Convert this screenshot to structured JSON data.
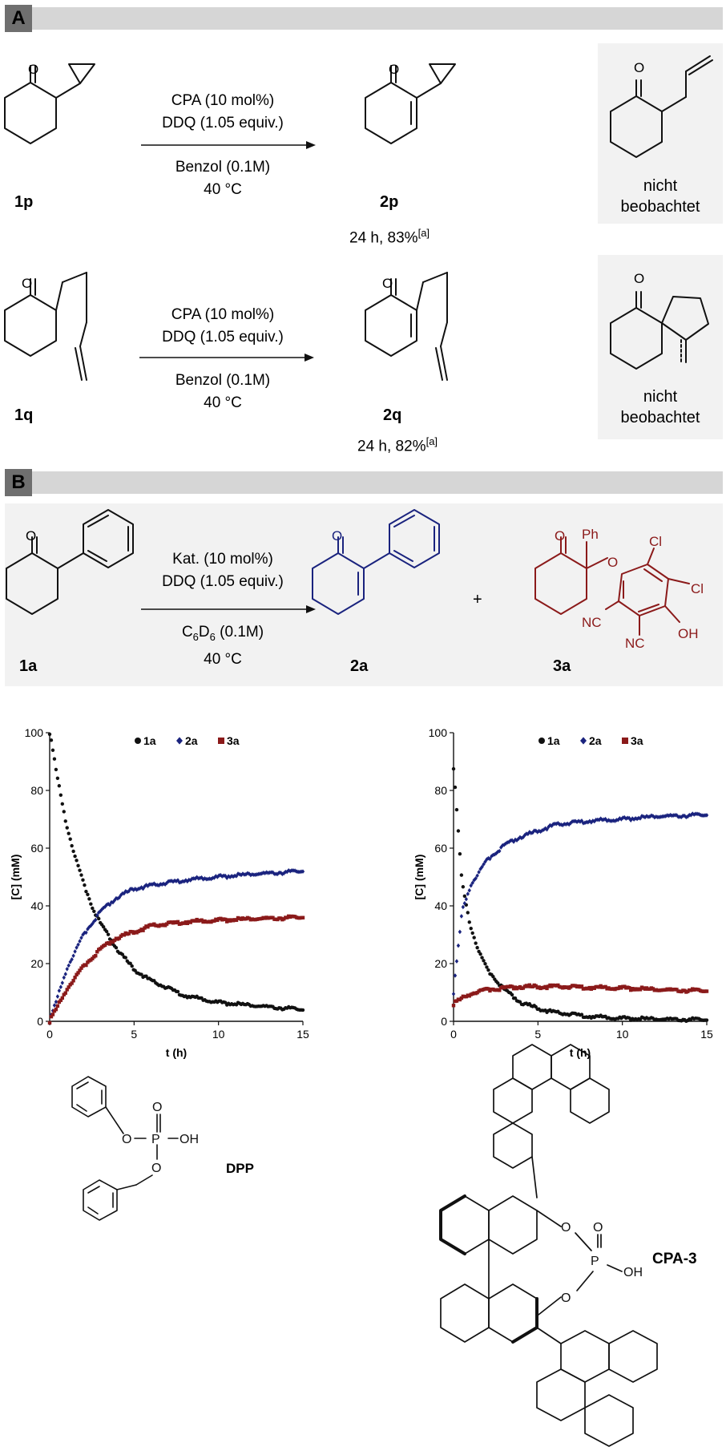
{
  "section_a": {
    "tag": "A"
  },
  "section_b": {
    "tag": "B"
  },
  "reaction_1p": {
    "reactant_label": "1p",
    "product_label": "2p",
    "cond_line1": "CPA (10 mol%)",
    "cond_line2": "DDQ (1.05 equiv.)",
    "cond_line3": "Benzol (0.1M)",
    "cond_line4": "40 °C",
    "yield": "24 h, 83%",
    "yield_note": "[a]",
    "side_note_1": "nicht",
    "side_note_2": "beobachtet"
  },
  "reaction_1q": {
    "reactant_label": "1q",
    "product_label": "2q",
    "cond_line1": "CPA (10 mol%)",
    "cond_line2": "DDQ (1.05 equiv.)",
    "cond_line3": "Benzol (0.1M)",
    "cond_line4": "40 °C",
    "yield": "24 h, 82%",
    "yield_note": "[a]",
    "side_note_1": "nicht",
    "side_note_2": "beobachtet"
  },
  "reaction_1a": {
    "reactant_label": "1a",
    "product_label": "2a",
    "byproduct_label": "3a",
    "plus": "+",
    "cond_line1": "Kat. (10 mol%)",
    "cond_line2": "DDQ (1.05 equiv.)",
    "cond_line3_pre": "C",
    "cond_line3_sub1": "6",
    "cond_line3_mid": "D",
    "cond_line3_sub2": "6",
    "cond_line3_post": " (0.1M)",
    "cond_line4": "40 °C"
  },
  "atoms": {
    "O": "O",
    "Ph": "Ph",
    "Cl": "Cl",
    "NC": "NC",
    "OH": "OH",
    "P": "P"
  },
  "catalysts": {
    "dpp_label": "DPP",
    "cpa_label": "CPA-3"
  },
  "colors": {
    "black": "#111111",
    "blue": "#1a237e",
    "red": "#8b1a1a",
    "highlight": "#cfe3f5"
  },
  "chart_data": [
    {
      "type": "scatter",
      "xlabel": "t (h)",
      "ylabel": "[C] (mM)",
      "xlim": [
        0,
        15
      ],
      "ylim": [
        0,
        100
      ],
      "xticks": [
        0,
        5,
        10,
        15
      ],
      "yticks": [
        0,
        20,
        40,
        60,
        80,
        100
      ],
      "legend_position": "top",
      "series": [
        {
          "name": "1a",
          "color": "#111111",
          "marker": "circle",
          "model": {
            "a": 0.0,
            "A": 100,
            "k": 0.38,
            "Y": 0
          },
          "x": [
            0,
            0.5,
            1,
            1.5,
            2,
            2.5,
            3,
            4,
            5,
            6,
            8,
            10,
            12,
            15
          ],
          "values": [
            100,
            83,
            68,
            57,
            48,
            40,
            34,
            25,
            18,
            14,
            9,
            6.5,
            5.5,
            4
          ]
        },
        {
          "name": "2a",
          "color": "#1a237e",
          "marker": "diamond",
          "model": {
            "a": 52,
            "A": 0,
            "k": 0.45,
            "Y": 1
          },
          "x": [
            0,
            1,
            2,
            3,
            4,
            5,
            6,
            8,
            10,
            12,
            15
          ],
          "values": [
            0,
            18,
            30,
            38,
            43,
            46,
            47,
            49,
            50,
            51,
            52
          ]
        },
        {
          "name": "3a",
          "color": "#8b1a1a",
          "marker": "square",
          "model": {
            "a": 36,
            "A": 0,
            "k": 0.35,
            "Y": 1
          },
          "x": [
            0,
            1,
            2,
            3,
            4,
            5,
            6,
            8,
            10,
            12,
            15
          ],
          "values": [
            0,
            11,
            19,
            25,
            29,
            31,
            33,
            34.5,
            35,
            35.5,
            36
          ]
        }
      ]
    },
    {
      "type": "scatter",
      "xlabel": "t (h)",
      "ylabel": "[C] (mM)",
      "xlim": [
        0,
        15
      ],
      "ylim": [
        0,
        100
      ],
      "xticks": [
        0,
        5,
        10,
        15
      ],
      "yticks": [
        0,
        20,
        40,
        60,
        80,
        100
      ],
      "legend_position": "top",
      "series": [
        {
          "name": "1a",
          "color": "#111111",
          "marker": "circle",
          "model": {
            "a": 0.0,
            "A": 70,
            "k": 0.75,
            "Y": 0
          },
          "x": [
            0,
            0.5,
            1,
            1.5,
            2,
            3,
            4,
            5,
            6,
            8,
            10,
            12,
            15
          ],
          "values": [
            88,
            48,
            33,
            24,
            18,
            11,
            6.5,
            4.5,
            3,
            1.8,
            1,
            0.8,
            0.5
          ]
        },
        {
          "name": "2a",
          "color": "#1a237e",
          "marker": "diamond",
          "model": {
            "a": 71,
            "A": 0,
            "k": 0.55,
            "Y": 1
          },
          "x": [
            0,
            0.5,
            1,
            2,
            3,
            4,
            5,
            6,
            8,
            10,
            12,
            15
          ],
          "values": [
            10,
            38,
            47,
            56,
            61,
            64,
            66,
            68,
            69.5,
            70,
            71,
            71.5
          ]
        },
        {
          "name": "3a",
          "color": "#8b1a1a",
          "marker": "square",
          "model": {
            "a": 11.5,
            "A": 0,
            "k": 1.2,
            "Y": 1
          },
          "x": [
            0,
            0.5,
            1,
            2,
            3,
            4,
            5,
            6,
            8,
            10,
            12,
            15
          ],
          "values": [
            6,
            8,
            9.5,
            11,
            11.5,
            12,
            12,
            12,
            11.8,
            11.5,
            11,
            10.5
          ]
        }
      ]
    }
  ]
}
